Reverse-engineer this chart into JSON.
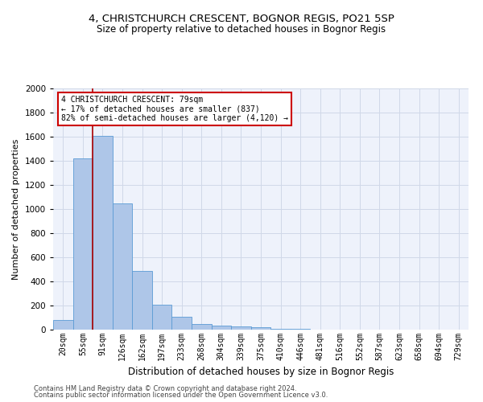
{
  "title_line1": "4, CHRISTCHURCH CRESCENT, BOGNOR REGIS, PO21 5SP",
  "title_line2": "Size of property relative to detached houses in Bognor Regis",
  "xlabel": "Distribution of detached houses by size in Bognor Regis",
  "ylabel": "Number of detached properties",
  "footnote1": "Contains HM Land Registry data © Crown copyright and database right 2024.",
  "footnote2": "Contains public sector information licensed under the Open Government Licence v3.0.",
  "bar_labels": [
    "20sqm",
    "55sqm",
    "91sqm",
    "126sqm",
    "162sqm",
    "197sqm",
    "233sqm",
    "268sqm",
    "304sqm",
    "339sqm",
    "375sqm",
    "410sqm",
    "446sqm",
    "481sqm",
    "516sqm",
    "552sqm",
    "587sqm",
    "623sqm",
    "658sqm",
    "694sqm",
    "729sqm"
  ],
  "bar_values": [
    80,
    1420,
    1610,
    1050,
    490,
    205,
    105,
    48,
    35,
    25,
    20,
    10,
    5,
    3,
    2,
    1,
    1,
    0,
    0,
    0,
    0
  ],
  "bar_color": "#aec6e8",
  "bar_edge_color": "#5b9bd5",
  "annotation_text": "4 CHRISTCHURCH CRESCENT: 79sqm\n← 17% of detached houses are smaller (837)\n82% of semi-detached houses are larger (4,120) →",
  "vline_color": "#aa0000",
  "annotation_box_color": "#cc0000",
  "ylim": [
    0,
    2000
  ],
  "yticks": [
    0,
    200,
    400,
    600,
    800,
    1000,
    1200,
    1400,
    1600,
    1800,
    2000
  ],
  "grid_color": "#d0d8e8",
  "bg_color": "#eef2fb",
  "title_fontsize": 9.5,
  "subtitle_fontsize": 8.5,
  "axis_label_fontsize": 8,
  "tick_fontsize": 7,
  "footnote_fontsize": 6
}
